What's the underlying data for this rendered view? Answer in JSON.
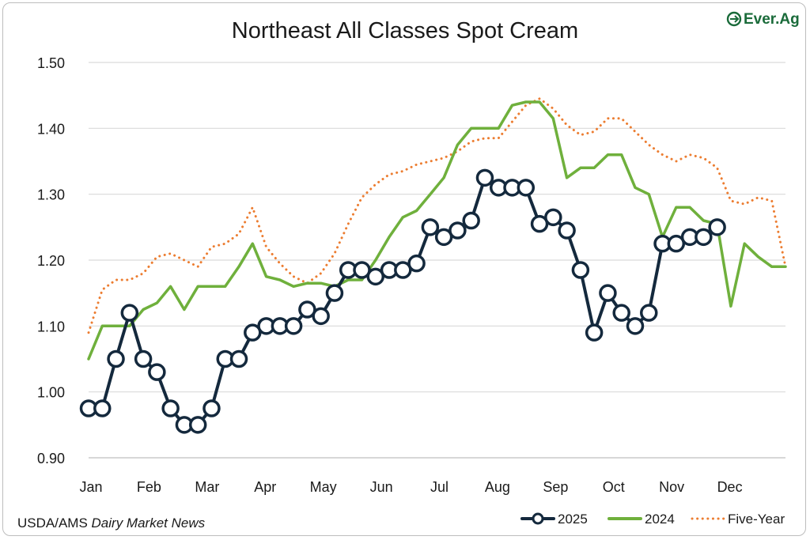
{
  "chart_data": {
    "type": "line",
    "title": "Northeast All Classes Spot Cream",
    "xlabel": "",
    "ylabel": "",
    "ylim": [
      0.9,
      1.5
    ],
    "yticks": [
      "0.90",
      "1.00",
      "1.10",
      "1.20",
      "1.30",
      "1.40",
      "1.50"
    ],
    "xlim": [
      1,
      52
    ],
    "months": [
      "Jan",
      "Feb",
      "Mar",
      "Apr",
      "May",
      "Jun",
      "Jul",
      "Aug",
      "Sep",
      "Oct",
      "Nov",
      "Dec"
    ],
    "grid": true,
    "legend_position": "bottom-right",
    "series": [
      {
        "name": "2025",
        "color": "#14293d",
        "style": "solid-markers",
        "x": [
          1,
          2,
          3,
          4,
          5,
          6,
          7,
          8,
          9,
          10,
          11,
          12,
          13,
          14,
          15,
          16,
          17,
          18,
          19,
          20,
          21,
          22,
          23,
          24,
          25,
          26,
          27,
          28,
          29,
          30,
          31,
          32,
          33,
          34,
          35,
          36,
          37,
          38,
          39,
          40,
          41,
          42,
          43,
          44,
          45,
          46,
          47
        ],
        "values": [
          0.975,
          0.975,
          1.05,
          1.12,
          1.05,
          1.03,
          0.975,
          0.95,
          0.95,
          0.975,
          1.05,
          1.05,
          1.09,
          1.1,
          1.1,
          1.1,
          1.125,
          1.115,
          1.15,
          1.185,
          1.185,
          1.175,
          1.185,
          1.185,
          1.195,
          1.25,
          1.235,
          1.245,
          1.26,
          1.325,
          1.31,
          1.31,
          1.31,
          1.255,
          1.265,
          1.245,
          1.185,
          1.09,
          1.15,
          1.12,
          1.1,
          1.12,
          1.225,
          1.225,
          1.235,
          1.235,
          1.25
        ]
      },
      {
        "name": "2024",
        "color": "#6fb03c",
        "style": "solid",
        "x": [
          1,
          2,
          3,
          4,
          5,
          6,
          7,
          8,
          9,
          10,
          11,
          12,
          13,
          14,
          15,
          16,
          17,
          18,
          19,
          20,
          21,
          22,
          23,
          24,
          25,
          26,
          27,
          28,
          29,
          30,
          31,
          32,
          33,
          34,
          35,
          36,
          37,
          38,
          39,
          40,
          41,
          42,
          43,
          44,
          45,
          46,
          47,
          48,
          49,
          50,
          51,
          52
        ],
        "values": [
          1.05,
          1.1,
          1.1,
          1.1,
          1.125,
          1.135,
          1.16,
          1.125,
          1.16,
          1.16,
          1.16,
          1.19,
          1.225,
          1.175,
          1.17,
          1.16,
          1.165,
          1.165,
          1.16,
          1.17,
          1.17,
          1.2,
          1.235,
          1.265,
          1.275,
          1.3,
          1.325,
          1.375,
          1.4,
          1.4,
          1.4,
          1.435,
          1.44,
          1.44,
          1.415,
          1.325,
          1.34,
          1.34,
          1.36,
          1.36,
          1.31,
          1.3,
          1.235,
          1.28,
          1.28,
          1.26,
          1.255,
          1.13,
          1.225,
          1.205,
          1.19,
          1.19
        ]
      },
      {
        "name": "Five-Year",
        "color": "#ec7d31",
        "style": "dotted",
        "x": [
          1,
          2,
          3,
          4,
          5,
          6,
          7,
          8,
          9,
          10,
          11,
          12,
          13,
          14,
          15,
          16,
          17,
          18,
          19,
          20,
          21,
          22,
          23,
          24,
          25,
          26,
          27,
          28,
          29,
          30,
          31,
          32,
          33,
          34,
          35,
          36,
          37,
          38,
          39,
          40,
          41,
          42,
          43,
          44,
          45,
          46,
          47,
          48,
          49,
          50,
          51,
          52
        ],
        "values": [
          1.09,
          1.155,
          1.17,
          1.17,
          1.18,
          1.205,
          1.21,
          1.2,
          1.19,
          1.22,
          1.225,
          1.24,
          1.28,
          1.22,
          1.195,
          1.175,
          1.165,
          1.18,
          1.21,
          1.255,
          1.295,
          1.315,
          1.33,
          1.335,
          1.345,
          1.35,
          1.355,
          1.365,
          1.38,
          1.385,
          1.385,
          1.41,
          1.435,
          1.445,
          1.43,
          1.405,
          1.39,
          1.395,
          1.415,
          1.415,
          1.395,
          1.375,
          1.36,
          1.35,
          1.36,
          1.355,
          1.34,
          1.29,
          1.285,
          1.295,
          1.29,
          1.19
        ]
      }
    ]
  },
  "source": {
    "prefix": "USDA/AMS ",
    "italic": "Dairy Market News"
  },
  "brand": {
    "logo_text": "Ever.Ag",
    "color": "#1a6b3a"
  }
}
